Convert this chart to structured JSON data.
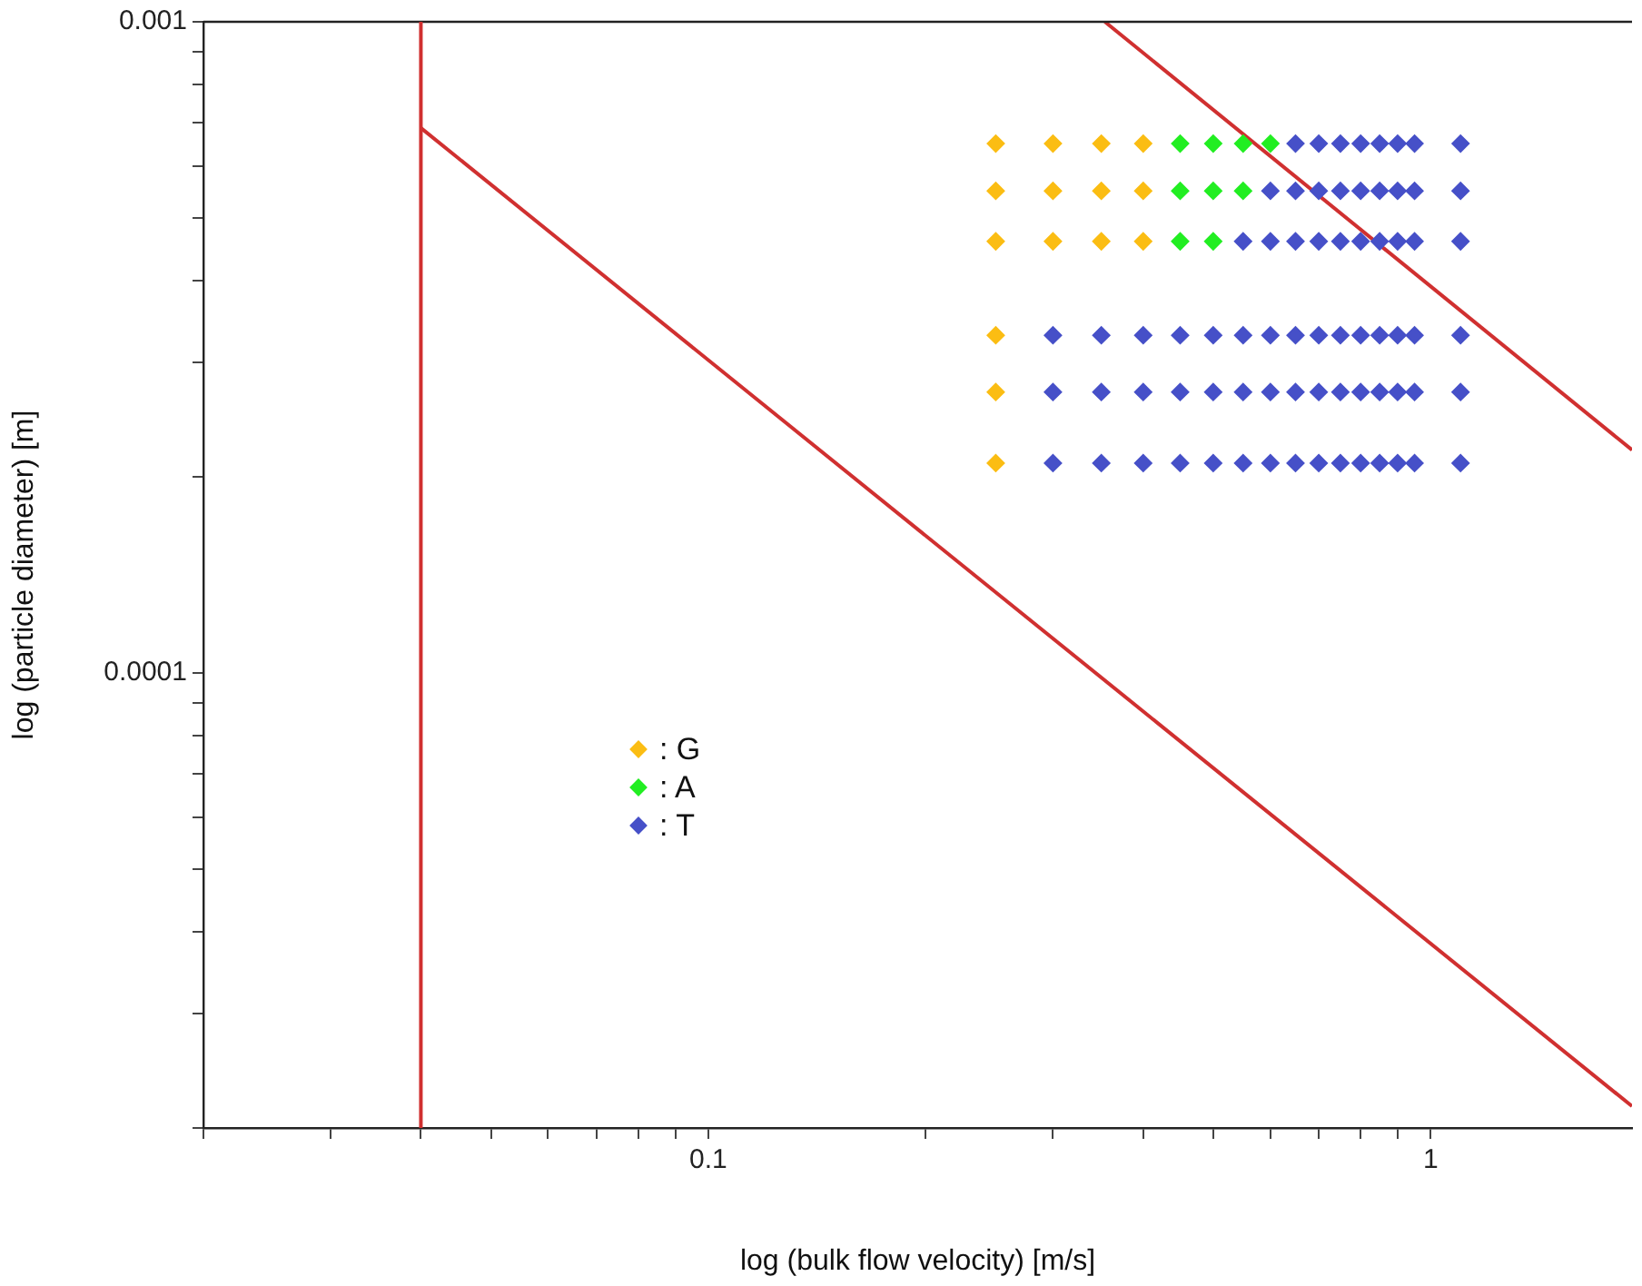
{
  "chart_data": {
    "type": "scatter",
    "xlabel": "log (bulk flow velocity) [m/s]",
    "ylabel": "log (particle diameter) [m]",
    "log": "xy",
    "grid": false,
    "legend": "center left",
    "marker": "diamond",
    "xlim": [
      0.02,
      1.9
    ],
    "ylim": [
      2e-05,
      0.001
    ],
    "xticks": [
      {
        "value": 0.02,
        "label": null
      },
      {
        "value": 0.03,
        "label": null
      },
      {
        "value": 0.04,
        "label": null
      },
      {
        "value": 0.05,
        "label": null
      },
      {
        "value": 0.06,
        "label": null
      },
      {
        "value": 0.07,
        "label": null
      },
      {
        "value": 0.08,
        "label": null
      },
      {
        "value": 0.09,
        "label": null
      },
      0.1,
      {
        "value": 0.2,
        "label": null
      },
      {
        "value": 0.3,
        "label": null
      },
      {
        "value": 0.4,
        "label": null
      },
      {
        "value": 0.5,
        "label": null
      },
      {
        "value": 0.6,
        "label": null
      },
      {
        "value": 0.7,
        "label": null
      },
      {
        "value": 0.8,
        "label": null
      },
      {
        "value": 0.9,
        "label": null
      },
      1
    ],
    "yticks": [
      {
        "value": 2e-05,
        "label": null
      },
      {
        "value": 3e-05,
        "label": null
      },
      {
        "value": 4e-05,
        "label": null
      },
      {
        "value": 5e-05,
        "label": null
      },
      {
        "value": 6e-05,
        "label": null
      },
      {
        "value": 7e-05,
        "label": null
      },
      {
        "value": 8e-05,
        "label": null
      },
      {
        "value": 9e-05,
        "label": null
      },
      0.0001,
      {
        "value": 0.0002,
        "label": null
      },
      {
        "value": 0.0003,
        "label": null
      },
      {
        "value": 0.0004,
        "label": null
      },
      {
        "value": 0.0005,
        "label": null
      },
      {
        "value": 0.0006,
        "label": null
      },
      {
        "value": 0.0007,
        "label": null
      },
      {
        "value": 0.0008,
        "label": null
      },
      {
        "value": 0.0009,
        "label": null
      },
      0.001
    ],
    "ref_lines": [
      {
        "axis": "x",
        "value": 0.04,
        "color": "#d03030"
      }
    ],
    "series": [
      {
        "name": ": G",
        "color": "#fbbd13",
        "x": [
          0.25,
          0.3,
          0.35,
          0.4,
          0.25,
          0.3,
          0.35,
          0.4,
          0.25,
          0.3,
          0.35,
          0.4,
          0.25,
          0.25,
          0.25
        ],
        "values": [
          0.00065,
          0.00065,
          0.00065,
          0.00065,
          0.00055,
          0.00055,
          0.00055,
          0.00055,
          0.00046,
          0.00046,
          0.00046,
          0.00046,
          0.00033,
          0.00027,
          0.00021
        ]
      },
      {
        "name": ": A",
        "color": "#22ee22",
        "x": [
          0.45,
          0.5,
          0.55,
          0.6,
          0.45,
          0.5,
          0.55,
          0.45,
          0.5
        ],
        "values": [
          0.00065,
          0.00065,
          0.00065,
          0.00065,
          0.00055,
          0.00055,
          0.00055,
          0.00046,
          0.00046
        ]
      },
      {
        "name": ": T",
        "color": "#4650c8",
        "x": [
          0.65,
          0.7,
          0.75,
          0.8,
          0.85,
          0.9,
          0.95,
          1.1,
          0.6,
          0.65,
          0.7,
          0.75,
          0.8,
          0.85,
          0.9,
          0.95,
          1.1,
          0.55,
          0.6,
          0.65,
          0.7,
          0.75,
          0.8,
          0.85,
          0.9,
          0.95,
          1.1,
          0.3,
          0.35,
          0.4,
          0.45,
          0.5,
          0.55,
          0.6,
          0.65,
          0.7,
          0.75,
          0.8,
          0.85,
          0.9,
          0.95,
          1.1,
          0.3,
          0.35,
          0.4,
          0.45,
          0.5,
          0.55,
          0.6,
          0.65,
          0.7,
          0.75,
          0.8,
          0.85,
          0.9,
          0.95,
          1.1,
          0.3,
          0.35,
          0.4,
          0.45,
          0.5,
          0.55,
          0.6,
          0.65,
          0.7,
          0.75,
          0.8,
          0.85,
          0.9,
          0.95,
          1.1
        ],
        "values": [
          0.00065,
          0.00065,
          0.00065,
          0.00065,
          0.00065,
          0.00065,
          0.00065,
          0.00065,
          0.00055,
          0.00055,
          0.00055,
          0.00055,
          0.00055,
          0.00055,
          0.00055,
          0.00055,
          0.00055,
          0.00046,
          0.00046,
          0.00046,
          0.00046,
          0.00046,
          0.00046,
          0.00046,
          0.00046,
          0.00046,
          0.00046,
          0.00033,
          0.00033,
          0.00033,
          0.00033,
          0.00033,
          0.00033,
          0.00033,
          0.00033,
          0.00033,
          0.00033,
          0.00033,
          0.00033,
          0.00033,
          0.00033,
          0.00033,
          0.00027,
          0.00027,
          0.00027,
          0.00027,
          0.00027,
          0.00027,
          0.00027,
          0.00027,
          0.00027,
          0.00027,
          0.00027,
          0.00027,
          0.00027,
          0.00027,
          0.00027,
          0.00021,
          0.00021,
          0.00021,
          0.00021,
          0.00021,
          0.00021,
          0.00021,
          0.00021,
          0.00021,
          0.00021,
          0.00021,
          0.00021,
          0.00021,
          0.00021,
          0.00021
        ]
      },
      {
        "type": "line",
        "color": "#d03030",
        "marker": "none",
        "x": [
          0.04,
          1.9
        ],
        "values": [
          0.000687,
          2.16e-05
        ]
      },
      {
        "type": "line",
        "color": "#d03030",
        "marker": "none",
        "x": [
          0.354,
          1.9
        ],
        "values": [
          0.001,
          0.00022
        ]
      }
    ]
  }
}
